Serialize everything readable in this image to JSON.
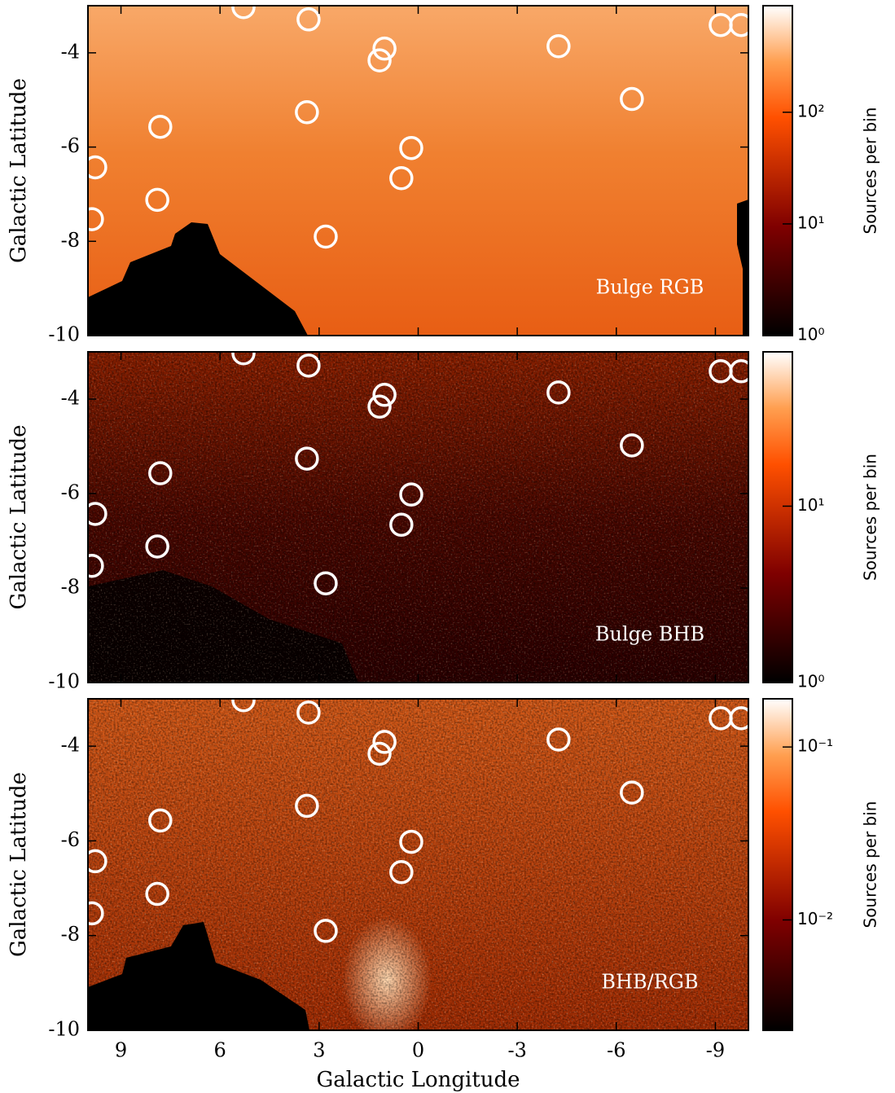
{
  "chart_data": [
    {
      "type": "heatmap",
      "label": "Bulge RGB",
      "ylabel": "Galactic Latitude",
      "xlim": [
        10,
        -10
      ],
      "ylim": [
        -10,
        -3
      ],
      "yticks": [
        -4,
        -6,
        -8,
        -10
      ],
      "colorbar": {
        "label": "Sources per bin",
        "log": true,
        "lim": [
          1,
          900
        ],
        "ticks": [
          {
            "value": 1,
            "label": "10⁰"
          },
          {
            "value": 10,
            "label": "10¹"
          },
          {
            "value": 100,
            "label": "10²"
          }
        ]
      },
      "markers": {
        "color": "#ffffff",
        "x": [
          5.29,
          3.32,
          1.02,
          1.17,
          -4.25,
          -9.16,
          -9.78,
          -6.47,
          3.37,
          7.81,
          0.21,
          9.78,
          0.51,
          7.9,
          9.88,
          2.8
        ],
        "y": [
          -3.03,
          -3.29,
          -3.91,
          -4.16,
          -3.86,
          -3.41,
          -3.41,
          -4.98,
          -5.26,
          -5.57,
          -6.02,
          -6.43,
          -6.66,
          -7.12,
          -7.53,
          -7.9
        ]
      }
    },
    {
      "type": "heatmap",
      "label": "Bulge BHB",
      "ylabel": "Galactic Latitude",
      "xlim": [
        10,
        -10
      ],
      "ylim": [
        -10,
        -3
      ],
      "yticks": [
        -4,
        -6,
        -8,
        -10
      ],
      "colorbar": {
        "label": "Sources per bin",
        "log": true,
        "lim": [
          1,
          75
        ],
        "ticks": [
          {
            "value": 1,
            "label": "10⁰"
          },
          {
            "value": 10,
            "label": "10¹"
          }
        ]
      },
      "markers": {
        "color": "#ffffff",
        "x": [
          5.29,
          3.32,
          1.02,
          1.17,
          -4.25,
          -9.16,
          -9.78,
          -6.47,
          3.37,
          7.81,
          0.21,
          9.78,
          0.51,
          7.9,
          9.88,
          2.8
        ],
        "y": [
          -3.03,
          -3.29,
          -3.91,
          -4.16,
          -3.86,
          -3.41,
          -3.41,
          -4.98,
          -5.26,
          -5.57,
          -6.02,
          -6.43,
          -6.66,
          -7.12,
          -7.53,
          -7.9
        ]
      }
    },
    {
      "type": "heatmap",
      "label": "BHB/RGB",
      "ylabel": "Galactic Latitude",
      "xlabel": "Galactic Longitude",
      "xlim": [
        10,
        -10
      ],
      "ylim": [
        -10,
        -3
      ],
      "yticks": [
        -4,
        -6,
        -8,
        -10
      ],
      "xticks": [
        9,
        6,
        3,
        0,
        -3,
        -6,
        -9
      ],
      "colorbar": {
        "label": "Sources per bin",
        "log": true,
        "lim": [
          0.0023,
          0.19
        ],
        "ticks": [
          {
            "value": 0.01,
            "label": "10⁻²"
          },
          {
            "value": 0.1,
            "label": "10⁻¹"
          }
        ]
      },
      "markers": {
        "color": "#ffffff",
        "x": [
          5.29,
          3.32,
          1.02,
          1.17,
          -4.25,
          -9.16,
          -9.78,
          -6.47,
          3.37,
          7.81,
          0.21,
          9.78,
          0.51,
          7.9,
          9.88,
          2.8
        ],
        "y": [
          -3.03,
          -3.29,
          -3.91,
          -4.16,
          -3.86,
          -3.41,
          -3.41,
          -4.98,
          -5.26,
          -5.57,
          -6.02,
          -6.43,
          -6.66,
          -7.12,
          -7.53,
          -7.9
        ]
      }
    }
  ]
}
